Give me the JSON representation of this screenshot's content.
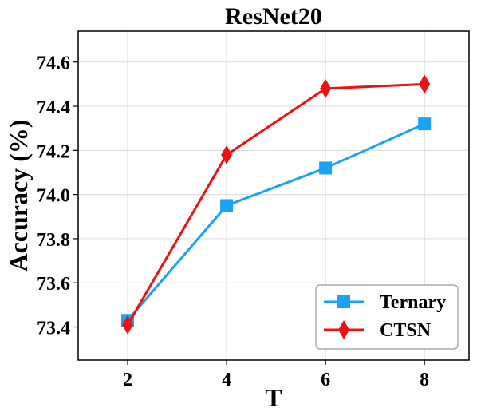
{
  "chart_data": {
    "type": "line",
    "title": "ResNet20",
    "xlabel": "T",
    "ylabel": "Accuracy (%)",
    "x": [
      2,
      4,
      6,
      8
    ],
    "xticks": [
      2,
      4,
      6,
      8
    ],
    "yticks": [
      73.4,
      73.6,
      73.8,
      74.0,
      74.2,
      74.4,
      74.6
    ],
    "xlim": [
      1.0,
      8.9
    ],
    "ylim": [
      73.25,
      74.74
    ],
    "grid": true,
    "legend_position": "bottom-right",
    "series": [
      {
        "name": "Ternary",
        "values": [
          73.43,
          73.95,
          74.12,
          74.32
        ],
        "color": "#1aa3f5",
        "marker": "square"
      },
      {
        "name": "CTSN",
        "values": [
          73.41,
          74.18,
          74.48,
          74.5
        ],
        "color": "#ee1111",
        "marker": "diamond"
      }
    ]
  }
}
